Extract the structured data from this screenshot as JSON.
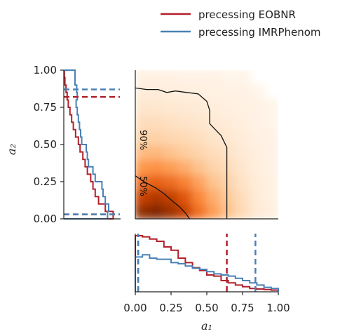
{
  "chart_data": {
    "type": "corner-plot",
    "legend": {
      "placement": "top-right",
      "entries": [
        {
          "name": "precessing EOBNR",
          "color": "#b2202a"
        },
        {
          "name": "precessing IMRPhenom",
          "color": "#4a81b5"
        }
      ]
    },
    "x_axis": {
      "label": "a₁",
      "range": [
        0,
        1
      ],
      "ticks": [
        "0.00",
        "0.25",
        "0.50",
        "0.75",
        "1.00"
      ]
    },
    "y_axis": {
      "label": "a₂",
      "range": [
        0,
        1
      ],
      "ticks": [
        "0.00",
        "0.25",
        "0.50",
        "0.75",
        "1.00"
      ]
    },
    "grid": false,
    "joint_density": {
      "type": "heatmap",
      "colormap": "oranges",
      "peak": [
        0.2,
        0.05
      ],
      "contour_labels": [
        "50%",
        "90%"
      ],
      "contours": [
        {
          "label": "50%",
          "points": [
            [
              0.0,
              0.29
            ],
            [
              0.06,
              0.25
            ],
            [
              0.14,
              0.21
            ],
            [
              0.2,
              0.17
            ],
            [
              0.26,
              0.12
            ],
            [
              0.31,
              0.08
            ],
            [
              0.35,
              0.04
            ],
            [
              0.38,
              0.0
            ]
          ]
        },
        {
          "label": "90%",
          "points": [
            [
              0.0,
              0.88
            ],
            [
              0.08,
              0.87
            ],
            [
              0.16,
              0.87
            ],
            [
              0.22,
              0.85
            ],
            [
              0.28,
              0.86
            ],
            [
              0.36,
              0.85
            ],
            [
              0.44,
              0.84
            ],
            [
              0.5,
              0.79
            ],
            [
              0.52,
              0.73
            ],
            [
              0.52,
              0.64
            ],
            [
              0.56,
              0.6
            ],
            [
              0.6,
              0.56
            ],
            [
              0.64,
              0.48
            ],
            [
              0.64,
              0.38
            ],
            [
              0.64,
              0.27
            ],
            [
              0.64,
              0.14
            ],
            [
              0.64,
              0.0
            ]
          ]
        }
      ],
      "hist_bins": {
        "x": [
          0.0,
          0.1,
          0.2,
          0.3,
          0.4,
          0.5,
          0.6,
          0.7,
          0.8,
          0.9,
          1.0
        ],
        "y": [
          0.0,
          0.1,
          0.2,
          0.3,
          0.4,
          0.5,
          0.6,
          0.7,
          0.8,
          0.9,
          1.0
        ],
        "values": [
          [
            0.95,
            1.0,
            0.92,
            0.8,
            0.6,
            0.44,
            0.3,
            0.18,
            0.08,
            0.04
          ],
          [
            0.8,
            0.86,
            0.82,
            0.7,
            0.52,
            0.38,
            0.27,
            0.16,
            0.07,
            0.03
          ],
          [
            0.62,
            0.66,
            0.62,
            0.54,
            0.42,
            0.3,
            0.22,
            0.13,
            0.06,
            0.03
          ],
          [
            0.46,
            0.48,
            0.44,
            0.38,
            0.3,
            0.22,
            0.17,
            0.1,
            0.05,
            0.02
          ],
          [
            0.33,
            0.34,
            0.3,
            0.26,
            0.21,
            0.16,
            0.12,
            0.08,
            0.04,
            0.02
          ],
          [
            0.23,
            0.23,
            0.2,
            0.18,
            0.15,
            0.11,
            0.09,
            0.06,
            0.03,
            0.02
          ],
          [
            0.16,
            0.16,
            0.14,
            0.12,
            0.1,
            0.08,
            0.06,
            0.04,
            0.02,
            0.01
          ],
          [
            0.1,
            0.1,
            0.09,
            0.08,
            0.07,
            0.05,
            0.04,
            0.03,
            0.02,
            0.01
          ],
          [
            0.06,
            0.06,
            0.05,
            0.05,
            0.04,
            0.03,
            0.02,
            0.02,
            0.01,
            0.0
          ],
          [
            0.03,
            0.03,
            0.03,
            0.02,
            0.02,
            0.02,
            0.01,
            0.01,
            0.0,
            0.0
          ]
        ]
      }
    },
    "marginal_a1": {
      "type": "step-histogram",
      "orientation": "vertical",
      "bin_edges": [
        0.0,
        0.05,
        0.1,
        0.15,
        0.2,
        0.25,
        0.3,
        0.35,
        0.4,
        0.45,
        0.5,
        0.55,
        0.6,
        0.65,
        0.7,
        0.75,
        0.8,
        0.85,
        0.9,
        0.95,
        1.0
      ],
      "series": [
        {
          "name": "precessing EOBNR",
          "color": "#b2202a",
          "values": [
            1.0,
            0.98,
            0.94,
            0.9,
            0.8,
            0.74,
            0.6,
            0.52,
            0.43,
            0.38,
            0.3,
            0.28,
            0.2,
            0.16,
            0.12,
            0.09,
            0.06,
            0.05,
            0.04,
            0.03
          ],
          "credible_interval": [
            0.02,
            0.64
          ]
        },
        {
          "name": "precessing IMRPhenom",
          "color": "#4a81b5",
          "values": [
            0.62,
            0.66,
            0.6,
            0.58,
            0.58,
            0.52,
            0.5,
            0.46,
            0.42,
            0.4,
            0.36,
            0.32,
            0.3,
            0.28,
            0.24,
            0.2,
            0.16,
            0.12,
            0.08,
            0.06
          ],
          "credible_interval": [
            0.02,
            0.84
          ]
        }
      ]
    },
    "marginal_a2": {
      "type": "step-histogram",
      "orientation": "horizontal",
      "bin_edges": [
        0.0,
        0.05,
        0.1,
        0.15,
        0.2,
        0.25,
        0.3,
        0.35,
        0.4,
        0.45,
        0.5,
        0.55,
        0.6,
        0.65,
        0.7,
        0.75,
        0.8,
        0.85,
        0.9,
        0.95,
        1.0
      ],
      "series": [
        {
          "name": "precessing EOBNR",
          "color": "#b2202a",
          "values": [
            0.88,
            0.74,
            0.62,
            0.56,
            0.52,
            0.48,
            0.42,
            0.38,
            0.34,
            0.29,
            0.26,
            0.21,
            0.17,
            0.14,
            0.11,
            0.08,
            0.06,
            0.04,
            0.02,
            0.01
          ],
          "credible_interval": [
            0.03,
            0.82
          ]
        },
        {
          "name": "precessing IMRPhenom",
          "color": "#4a81b5",
          "values": [
            0.78,
            0.8,
            0.74,
            0.7,
            0.68,
            0.56,
            0.52,
            0.44,
            0.42,
            0.4,
            0.32,
            0.3,
            0.28,
            0.26,
            0.24,
            0.22,
            0.24,
            0.23,
            0.2,
            0.2
          ],
          "credible_interval": [
            0.03,
            0.87
          ]
        }
      ]
    }
  }
}
